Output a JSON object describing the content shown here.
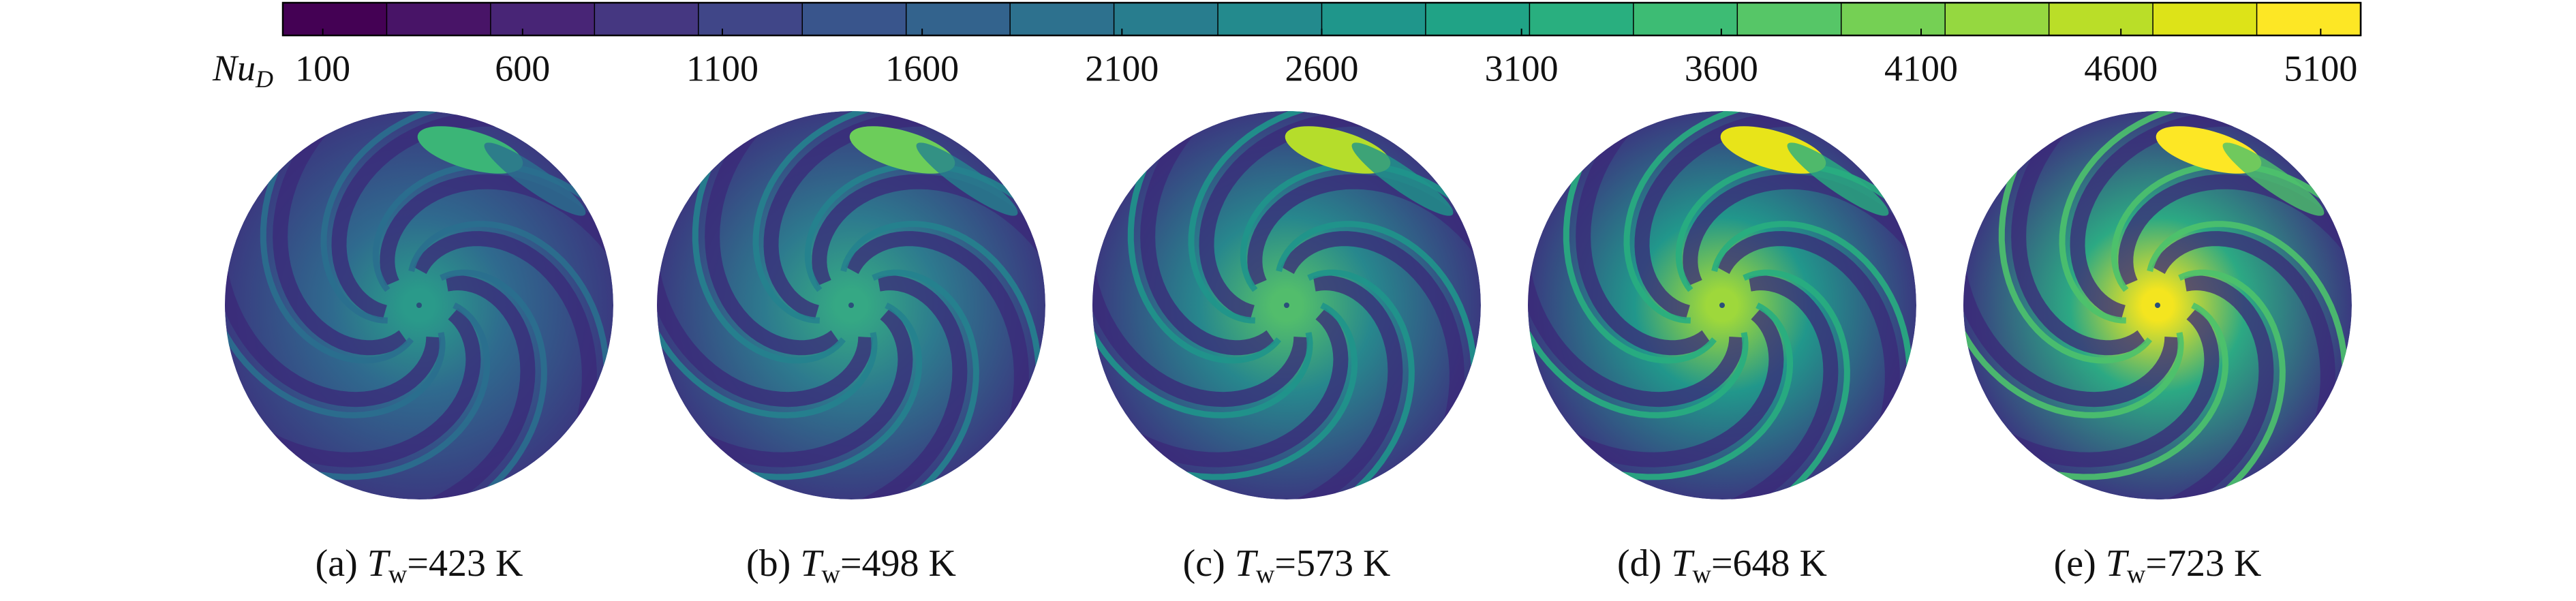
{
  "colorbar": {
    "label": "Nu",
    "label_subscript": "D",
    "lim": [
      0,
      5200
    ],
    "ticks": [
      100,
      600,
      1100,
      1600,
      2100,
      2600,
      3100,
      3600,
      4100,
      4600,
      5100
    ],
    "colors": [
      "#440154",
      "#481467",
      "#482576",
      "#453781",
      "#404688",
      "#39558c",
      "#33638d",
      "#2d718e",
      "#287d8e",
      "#238a8d",
      "#1f968b",
      "#20a386",
      "#29af7f",
      "#3dbc74",
      "#56c667",
      "#75d054",
      "#95d840",
      "#bade28",
      "#dde318",
      "#fde725"
    ]
  },
  "panels": [
    {
      "label": "(a)",
      "symbol": "T",
      "subscript": "w",
      "value": "=423 K"
    },
    {
      "label": "(b)",
      "symbol": "T",
      "subscript": "w",
      "value": "=498 K"
    },
    {
      "label": "(c)",
      "symbol": "T",
      "subscript": "w",
      "value": "=573 K"
    },
    {
      "label": "(d)",
      "symbol": "T",
      "subscript": "w",
      "value": "=648 K"
    },
    {
      "label": "(e)",
      "symbol": "T",
      "subscript": "w",
      "value": "=723 K"
    }
  ]
}
